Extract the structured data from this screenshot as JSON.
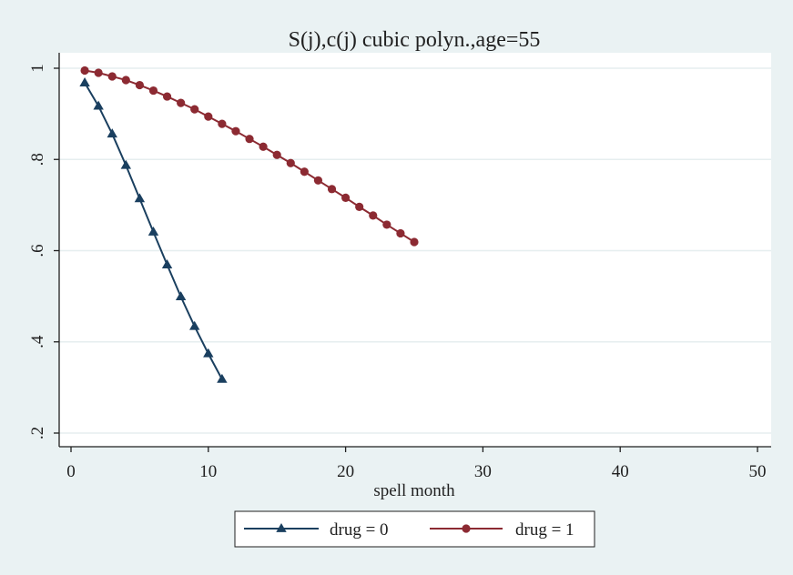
{
  "chart_data": {
    "type": "line",
    "title": "S(j),c(j) cubic polyn.,age=55",
    "xlabel": "spell month",
    "ylabel": "",
    "xlim": [
      0,
      50
    ],
    "ylim": [
      0.2,
      1.0
    ],
    "x_ticks": [
      0,
      10,
      20,
      30,
      40,
      50
    ],
    "x_tick_labels": [
      "0",
      "10",
      "20",
      "30",
      "40",
      "50"
    ],
    "y_ticks": [
      0.2,
      0.4,
      0.6,
      0.8,
      1.0
    ],
    "y_tick_labels": [
      ".2",
      ".4",
      ".6",
      ".8",
      "1"
    ],
    "grid": true,
    "legend_position": "bottom",
    "series": [
      {
        "name": "drug = 0",
        "color": "#1a3f5f",
        "marker": "triangle",
        "x": [
          1,
          2,
          3,
          4,
          5,
          6,
          7,
          8,
          9,
          10,
          11
        ],
        "y": [
          0.968,
          0.917,
          0.856,
          0.787,
          0.714,
          0.641,
          0.569,
          0.499,
          0.434,
          0.374,
          0.318
        ]
      },
      {
        "name": "drug = 1",
        "color": "#8c2a32",
        "marker": "circle",
        "x": [
          1,
          2,
          3,
          4,
          5,
          6,
          7,
          8,
          9,
          10,
          11,
          12,
          13,
          14,
          15,
          16,
          17,
          18,
          19,
          20,
          21,
          22,
          23,
          24,
          25
        ],
        "y": [
          0.995,
          0.99,
          0.982,
          0.974,
          0.963,
          0.951,
          0.938,
          0.924,
          0.91,
          0.894,
          0.878,
          0.862,
          0.845,
          0.828,
          0.81,
          0.792,
          0.773,
          0.754,
          0.735,
          0.716,
          0.696,
          0.677,
          0.657,
          0.638,
          0.619
        ]
      }
    ]
  }
}
